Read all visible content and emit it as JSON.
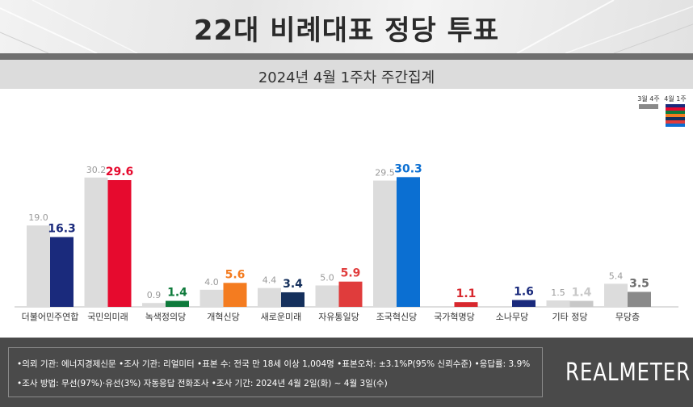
{
  "header": {
    "title": "22대 비례대표 정당 투표",
    "subtitle": "2024년 4월 1주차 주간집계"
  },
  "chart_data": {
    "type": "bar",
    "categories": [
      "더불어민주연합",
      "국민의미래",
      "녹색정의당",
      "개혁신당",
      "새로운미래",
      "자유통일당",
      "조국혁신당",
      "국가혁명당",
      "소나무당",
      "기타 정당",
      "무당층"
    ],
    "series": [
      {
        "name": "3월 4주",
        "values": [
          19.0,
          30.2,
          0.9,
          4.0,
          4.4,
          5.0,
          29.5,
          null,
          null,
          1.5,
          5.4
        ]
      },
      {
        "name": "4월 1주",
        "values": [
          16.3,
          29.6,
          1.4,
          5.6,
          3.4,
          5.9,
          30.3,
          1.1,
          1.6,
          1.4,
          3.5
        ]
      }
    ],
    "prev_labels": [
      "19.0",
      "30.2",
      "0.9",
      "4.0",
      "4.4",
      "5.0",
      "29.5",
      "",
      "",
      "1.5",
      "5.4"
    ],
    "curr_labels": [
      "16.3",
      "29.6",
      "1.4",
      "5.6",
      "3.4",
      "5.9",
      "30.3",
      "1.1",
      "1.6",
      "1.4",
      "3.5"
    ],
    "curr_colors": [
      "#1a2a7c",
      "#e60a2e",
      "#0e7a3b",
      "#f47c20",
      "#15305c",
      "#e03c3c",
      "#0b6fd2",
      "#d8282e",
      "#1a2a7c",
      "#c8c8c8",
      "#8a8a8a"
    ],
    "curr_label_colors": [
      "#1a2a7c",
      "#e60a2e",
      "#0e7a3b",
      "#f47c20",
      "#15305c",
      "#e03c3c",
      "#0b6fd2",
      "#d8282e",
      "#1a2a7c",
      "#c8c8c8",
      "#6e6e6e"
    ],
    "prev_color": "#dcdcdc",
    "legend_swatch_colors": [
      "#1a2a7c",
      "#e60a2e",
      "#0e7a3b",
      "#f47c20",
      "#15305c",
      "#e03c3c",
      "#0b6fd2"
    ],
    "legend_placement": "top-right",
    "ylim": [
      0,
      33
    ]
  },
  "legend": {
    "prev_label": "3월 4주",
    "curr_label": "4월 1주"
  },
  "footer": {
    "line1": "•의뢰 기관: 에너지경제신문  •조사 기관: 리얼미터 •표본 수: 전국 만 18세 이상 1,004명 •표본오차: ±3.1%P(95% 신뢰수준) •응답률: 3.9%",
    "line2": "•조사 방법: 무선(97%)·유선(3%) 자동응답 전화조사 •조사 기간: 2024년 4월 2일(화) ~ 4월 3일(수)",
    "brand": "REALMETER"
  }
}
